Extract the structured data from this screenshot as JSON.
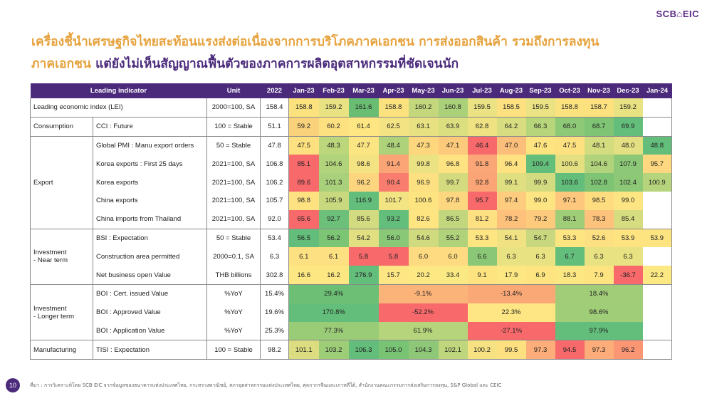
{
  "logo": "SCB⌂EIC",
  "title": {
    "line1": "เครื่องชี้นำเศรษฐกิจไทยสะท้อนแรงส่งต่อเนื่องจากการบริโภคภาคเอกชน การส่งออกสินค้า รวมถึงการลงทุน",
    "line2_part1": "ภาคเอกชน",
    "line2_part2": "แต่ยังไม่เห็นสัญญาณฟื้นตัวของภาคการผลิตอุตสาหกรรมที่ชัดเจนนัก"
  },
  "table": {
    "headers": {
      "indicator": "Leading indicator",
      "unit": "Unit",
      "year": "2022",
      "months": [
        "Jan-23",
        "Feb-23",
        "Mar-23",
        "Apr-23",
        "May-23",
        "Jun-23",
        "Jul-23",
        "Aug-23",
        "Sep-23",
        "Oct-23",
        "Nov-23",
        "Dec-23",
        "Jan-24"
      ]
    },
    "groups": {
      "consumption": "Consumption",
      "export": "Export",
      "invest_near_1": "Investment",
      "invest_near_2": "- Near term",
      "invest_long_1": "Investment",
      "invest_long_2": "- Longer term",
      "manufacturing": "Manufacturing"
    },
    "rows": [
      {
        "label": "Leading economic index (LEI)",
        "unit": "2000=100, SA",
        "y2022": "158.4",
        "values": [
          "158.8",
          "159.2",
          "161.6",
          "158.8",
          "160.2",
          "160.8",
          "159.5",
          "158.5",
          "159.5",
          "158.8",
          "158.7",
          "159.2",
          ""
        ],
        "colors": [
          "#fbe27f",
          "#e8e282",
          "#69bd72",
          "#fbe27f",
          "#c4d77d",
          "#aad17a",
          "#eae283",
          "#fde07f",
          "#eae283",
          "#fbe27f",
          "#fde17f",
          "#e8e282",
          "#ffffff"
        ]
      },
      {
        "label": "CCI : Future",
        "unit": "100 = Stable",
        "y2022": "51.1",
        "values": [
          "59.2",
          "60.2",
          "61.4",
          "62.5",
          "63.1",
          "63.9",
          "62.8",
          "64.2",
          "66.3",
          "68.0",
          "68.7",
          "69.9",
          ""
        ],
        "colors": [
          "#fbd27c",
          "#fde07f",
          "#fee683",
          "#f4e383",
          "#e8e182",
          "#dcdf80",
          "#eee283",
          "#d7dd80",
          "#b7d57b",
          "#8ec977",
          "#7ec474",
          "#63be7b",
          "#ffffff"
        ]
      },
      {
        "label": "Global PMI : Manu export orders",
        "unit": "50 = Stable",
        "y2022": "47.8",
        "values": [
          "47.5",
          "48.3",
          "47.7",
          "48.4",
          "47.3",
          "47.1",
          "46.4",
          "47.0",
          "47.6",
          "47.5",
          "48.1",
          "48.0",
          "48.8"
        ],
        "colors": [
          "#fde07f",
          "#bcd67c",
          "#fbe482",
          "#aed27a",
          "#fdd67d",
          "#fdc97b",
          "#f8696b",
          "#fcbf7b",
          "#fde480",
          "#fde07f",
          "#d4dc80",
          "#e2e082",
          "#63be7b"
        ]
      },
      {
        "label": "Korea exports : First 25 days",
        "unit": "2021=100, SA",
        "y2022": "106.8",
        "values": [
          "85.1",
          "104.6",
          "98.6",
          "91.4",
          "99.8",
          "96.8",
          "91.8",
          "96.4",
          "109.4",
          "100.6",
          "104.6",
          "107.9",
          "95.7"
        ],
        "colors": [
          "#f8696b",
          "#b1d37b",
          "#f3e382",
          "#fba476",
          "#ebe283",
          "#fee382",
          "#fba676",
          "#fee282",
          "#63be7b",
          "#e4e082",
          "#b1d37b",
          "#8cc877",
          "#fed880"
        ]
      },
      {
        "label": "Korea exports",
        "unit": "2021=100, SA",
        "y2022": "106.2",
        "values": [
          "89.6",
          "101.3",
          "96.2",
          "90.4",
          "96.9",
          "99.7",
          "92.8",
          "99.1",
          "99.9",
          "103.6",
          "102.8",
          "102.4",
          "100.9"
        ],
        "colors": [
          "#f8696b",
          "#a9d07a",
          "#fdd57f",
          "#f97d6f",
          "#fde081",
          "#d4db7f",
          "#fba475",
          "#dfdf81",
          "#d2db7f",
          "#63be7b",
          "#7ec474",
          "#8dc877",
          "#b6d47b"
        ]
      },
      {
        "label": "China exports",
        "unit": "2021=100, SA",
        "y2022": "105.7",
        "values": [
          "98.8",
          "105.9",
          "116.9",
          "101.7",
          "100.6",
          "97.8",
          "95.7",
          "97.4",
          "99.0",
          "97.1",
          "98.5",
          "99.0",
          ""
        ],
        "colors": [
          "#fee282",
          "#c8d87e",
          "#63be7b",
          "#f2e383",
          "#fde480",
          "#fdd680",
          "#f8696b",
          "#fdcc7e",
          "#fee583",
          "#fdc77d",
          "#fedd81",
          "#fee583",
          "#ffffff"
        ]
      },
      {
        "label": "China imports from Thailand",
        "unit": "2021=100, SA",
        "y2022": "92.0",
        "values": [
          "65.6",
          "92.7",
          "85.6",
          "93.2",
          "82.6",
          "86.5",
          "81.2",
          "78.2",
          "79.2",
          "88.1",
          "78.3",
          "85.4",
          ""
        ],
        "colors": [
          "#f8696b",
          "#6cc07a",
          "#d2db7f",
          "#63be7b",
          "#fee582",
          "#c1d67d",
          "#fde081",
          "#fdc17b",
          "#fecb7d",
          "#a0cd78",
          "#fdc27b",
          "#d6dc80",
          "#ffffff"
        ]
      },
      {
        "label": "BSI : Expectation",
        "unit": "50 = Stable",
        "y2022": "53.4",
        "values": [
          "56.5",
          "56.2",
          "54.2",
          "56.0",
          "54.6",
          "55.2",
          "53.3",
          "54.1",
          "54.7",
          "53.3",
          "52.6",
          "53.9",
          "53.9"
        ],
        "colors": [
          "#63be7b",
          "#7cc575",
          "#e1df81",
          "#88c877",
          "#d0da7f",
          "#afd27a",
          "#fde581",
          "#f0e282",
          "#c9d87e",
          "#fde581",
          "#fde081",
          "#fde480",
          "#fde480"
        ]
      },
      {
        "label": "Construction area permitted",
        "unit": "2000=0.1, SA",
        "y2022": "6.3",
        "values": [
          "6.1",
          "6.1",
          "5.8",
          "5.8",
          "6.0",
          "6.0",
          "6.6",
          "6.3",
          "6.3",
          "6.7",
          "6.3",
          "6.3",
          ""
        ],
        "colors": [
          "#fde081",
          "#fde081",
          "#f8696b",
          "#f8696b",
          "#fedb80",
          "#fedb80",
          "#8ac877",
          "#e9e283",
          "#e9e283",
          "#63be7b",
          "#e9e283",
          "#e9e283",
          "#ffffff"
        ]
      },
      {
        "label": "Net business open Value",
        "unit": "THB billions",
        "y2022": "302.8",
        "values": [
          "16.6",
          "16.2",
          "276.9",
          "15.7",
          "20.2",
          "33.4",
          "9.1",
          "17.9",
          "6.9",
          "18.3",
          "7.9",
          "-36.7",
          "22.2"
        ],
        "colors": [
          "#fde783",
          "#fde783",
          "#63be7b",
          "#fde683",
          "#fde884",
          "#fbe983",
          "#fde480",
          "#fde783",
          "#fde480",
          "#fde783",
          "#fde480",
          "#f8696b",
          "#fde984"
        ]
      }
    ],
    "boi_rows": [
      {
        "label": "BOI : Cert. issued Value",
        "unit": "%YoY",
        "y2022": "15.4%",
        "values": [
          "29.4%",
          "-9.1%",
          "-13.4%",
          "18.4%"
        ],
        "colors": [
          "#6cbf74",
          "#fcb37a",
          "#fba877",
          "#a2cd78"
        ]
      },
      {
        "label": "BOI : Approved Value",
        "unit": "%YoY",
        "y2022": "19.6%",
        "values": [
          "170.8%",
          "-52.2%",
          "22.3%",
          "98.6%"
        ],
        "colors": [
          "#63be7b",
          "#f8696b",
          "#fde683",
          "#a0cd78"
        ]
      },
      {
        "label": "BOI : Application Value",
        "unit": "%YoY",
        "y2022": "25.3%",
        "values": [
          "77.3%",
          "61.9%",
          "-27.1%",
          "97.9%"
        ],
        "colors": [
          "#9acc78",
          "#b5d47b",
          "#f8696b",
          "#63be7b"
        ]
      }
    ],
    "tisi_row": {
      "label": "TISI : Expectation",
      "unit": "100 = Stable",
      "y2022": "98.2",
      "values": [
        "101.1",
        "103.2",
        "106.3",
        "105.0",
        "104.3",
        "102.1",
        "100.2",
        "99.5",
        "97.3",
        "94.5",
        "97.3",
        "96.2",
        ""
      ],
      "colors": [
        "#dcdd80",
        "#9ecd78",
        "#63be7b",
        "#79c375",
        "#8ec777",
        "#bfd67d",
        "#f6e283",
        "#fde080",
        "#fcad79",
        "#f8696b",
        "#fcad79",
        "#fb9675",
        "#ffffff"
      ]
    }
  },
  "footer": {
    "page_number": "10",
    "source": "ที่มา : การวิเคราะห์โดย SCB EIC จากข้อมูลของธนาคารแห่งประเทศไทย, กระทรวงพาณิชย์, สภาอุตสาหกรรมแห่งประเทศไทย, ศุลกากรจีนและเกาหลีใต้, สำนักงานคณะกรรมการส่งเสริมการลงทุน, S&P Global และ CEIC"
  }
}
